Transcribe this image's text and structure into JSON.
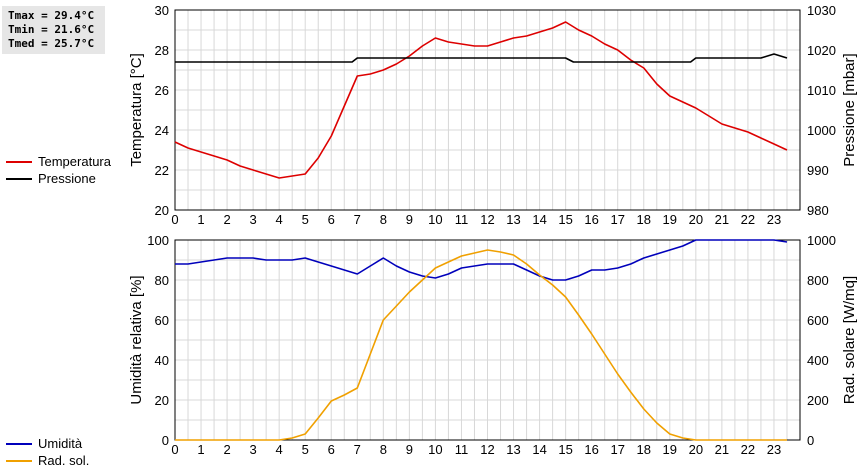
{
  "stats": {
    "tmax": "Tmax = 29.4°C",
    "tmin": "Tmin = 21.6°C",
    "tmed": "Tmed = 25.7°C"
  },
  "legend_top": [
    {
      "label": "Temperatura",
      "color": "#dd0000"
    },
    {
      "label": "Pressione",
      "color": "#000000"
    }
  ],
  "legend_bottom": [
    {
      "label": "Umidità",
      "color": "#0000bb"
    },
    {
      "label": "Rad. sol.",
      "color": "#f0a000"
    }
  ],
  "chart_data": [
    {
      "type": "line",
      "xlabel": "",
      "x_ticks": [
        0,
        1,
        2,
        3,
        4,
        5,
        6,
        7,
        8,
        9,
        10,
        11,
        12,
        13,
        14,
        15,
        16,
        17,
        18,
        19,
        20,
        21,
        22,
        23
      ],
      "xlim": [
        0,
        24
      ],
      "grid": true,
      "legend_position": "left",
      "left_axis": {
        "label": "Temperatura [°C]",
        "ylim": [
          20,
          30
        ],
        "ticks": [
          20,
          22,
          24,
          26,
          28,
          30
        ]
      },
      "right_axis": {
        "label": "Pressione [mbar]",
        "ylim": [
          980,
          1030
        ],
        "ticks": [
          980,
          990,
          1000,
          1010,
          1020,
          1030
        ]
      },
      "series": [
        {
          "name": "Temperatura",
          "axis": "left",
          "color": "#dd0000",
          "x": [
            0,
            0.5,
            1,
            1.5,
            2,
            2.5,
            3,
            3.5,
            4,
            4.5,
            5,
            5.5,
            6,
            6.5,
            7,
            7.5,
            8,
            8.5,
            9,
            9.5,
            10,
            10.5,
            11,
            11.5,
            12,
            12.5,
            13,
            13.5,
            14,
            14.5,
            15,
            15.5,
            16,
            16.5,
            17,
            17.5,
            18,
            18.5,
            19,
            19.5,
            20,
            20.5,
            21,
            21.5,
            22,
            22.5,
            23,
            23.5
          ],
          "y": [
            23.4,
            23.1,
            22.9,
            22.7,
            22.5,
            22.2,
            22.0,
            21.8,
            21.6,
            21.7,
            21.8,
            22.6,
            23.7,
            25.2,
            26.7,
            26.8,
            27.0,
            27.3,
            27.7,
            28.2,
            28.6,
            28.4,
            28.3,
            28.2,
            28.2,
            28.4,
            28.6,
            28.7,
            28.9,
            29.1,
            29.4,
            29.0,
            28.7,
            28.3,
            28.0,
            27.5,
            27.1,
            26.3,
            25.7,
            25.4,
            25.1,
            24.7,
            24.3,
            24.1,
            23.9,
            23.6,
            23.3,
            23.0
          ]
        },
        {
          "name": "Pressione",
          "axis": "right",
          "color": "#000000",
          "x": [
            0,
            0.5,
            1,
            1.5,
            2,
            2.5,
            3,
            3.5,
            4,
            4.5,
            5,
            5.5,
            6,
            6.5,
            6.8,
            7,
            7.5,
            8,
            8.5,
            9,
            9.5,
            10,
            10.5,
            11,
            11.5,
            12,
            12.5,
            13,
            13.5,
            14,
            14.5,
            15,
            15.3,
            15.5,
            16,
            16.5,
            17,
            17.5,
            18,
            18.5,
            19,
            19.5,
            19.8,
            20,
            20.5,
            21,
            21.5,
            22,
            22.5,
            23,
            23.5
          ],
          "y": [
            1017,
            1017,
            1017,
            1017,
            1017,
            1017,
            1017,
            1017,
            1017,
            1017,
            1017,
            1017,
            1017,
            1017,
            1017,
            1018,
            1018,
            1018,
            1018,
            1018,
            1018,
            1018,
            1018,
            1018,
            1018,
            1018,
            1018,
            1018,
            1018,
            1018,
            1018,
            1018,
            1017,
            1017,
            1017,
            1017,
            1017,
            1017,
            1017,
            1017,
            1017,
            1017,
            1017,
            1018,
            1018,
            1018,
            1018,
            1018,
            1018,
            1019,
            1018
          ]
        }
      ]
    },
    {
      "type": "line",
      "xlabel": "",
      "x_ticks": [
        0,
        1,
        2,
        3,
        4,
        5,
        6,
        7,
        8,
        9,
        10,
        11,
        12,
        13,
        14,
        15,
        16,
        17,
        18,
        19,
        20,
        21,
        22,
        23
      ],
      "xlim": [
        0,
        24
      ],
      "grid": true,
      "legend_position": "left",
      "left_axis": {
        "label": "Umidità relativa [%]",
        "ylim": [
          0,
          100
        ],
        "ticks": [
          0,
          20,
          40,
          60,
          80,
          100
        ]
      },
      "right_axis": {
        "label": "Rad. solare [W/mq]",
        "ylim": [
          0,
          1000
        ],
        "ticks": [
          0,
          200,
          400,
          600,
          800,
          1000
        ]
      },
      "series": [
        {
          "name": "Umidità",
          "axis": "left",
          "color": "#0000bb",
          "x": [
            0,
            0.5,
            1,
            1.5,
            2,
            2.5,
            3,
            3.5,
            4,
            4.5,
            5,
            5.5,
            6,
            6.5,
            7,
            7.5,
            8,
            8.5,
            9,
            9.5,
            10,
            10.5,
            11,
            11.5,
            12,
            12.5,
            13,
            13.5,
            14,
            14.5,
            15,
            15.5,
            16,
            16.5,
            17,
            17.5,
            18,
            18.5,
            19,
            19.5,
            20,
            20.5,
            21,
            21.5,
            22,
            22.5,
            23,
            23.5
          ],
          "y": [
            88,
            88,
            89,
            90,
            91,
            91,
            91,
            90,
            90,
            90,
            91,
            89,
            87,
            85,
            83,
            87,
            91,
            87,
            84,
            82,
            81,
            83,
            86,
            87,
            88,
            88,
            88,
            85,
            82,
            80,
            80,
            82,
            85,
            85,
            86,
            88,
            91,
            93,
            95,
            97,
            100,
            100,
            100,
            100,
            100,
            100,
            100,
            99
          ]
        },
        {
          "name": "Rad. sol.",
          "axis": "right",
          "color": "#f0a000",
          "x": [
            0,
            0.5,
            1,
            1.5,
            2,
            2.5,
            3,
            3.5,
            4,
            4.5,
            5,
            5.5,
            6,
            6.5,
            7,
            7.5,
            8,
            8.5,
            9,
            9.5,
            10,
            10.5,
            11,
            11.5,
            12,
            12.5,
            13,
            13.5,
            14,
            14.5,
            15,
            15.5,
            16,
            16.5,
            17,
            17.5,
            18,
            18.5,
            19,
            19.5,
            20,
            20.5,
            21,
            21.5,
            22,
            22.5,
            23,
            23.5
          ],
          "y": [
            0,
            0,
            0,
            0,
            0,
            0,
            0,
            0,
            0,
            10,
            30,
            110,
            195,
            225,
            260,
            430,
            600,
            670,
            740,
            800,
            860,
            890,
            920,
            935,
            950,
            940,
            925,
            880,
            825,
            775,
            715,
            625,
            530,
            430,
            330,
            240,
            155,
            85,
            30,
            10,
            0,
            0,
            0,
            0,
            0,
            0,
            0,
            0
          ]
        }
      ]
    }
  ]
}
